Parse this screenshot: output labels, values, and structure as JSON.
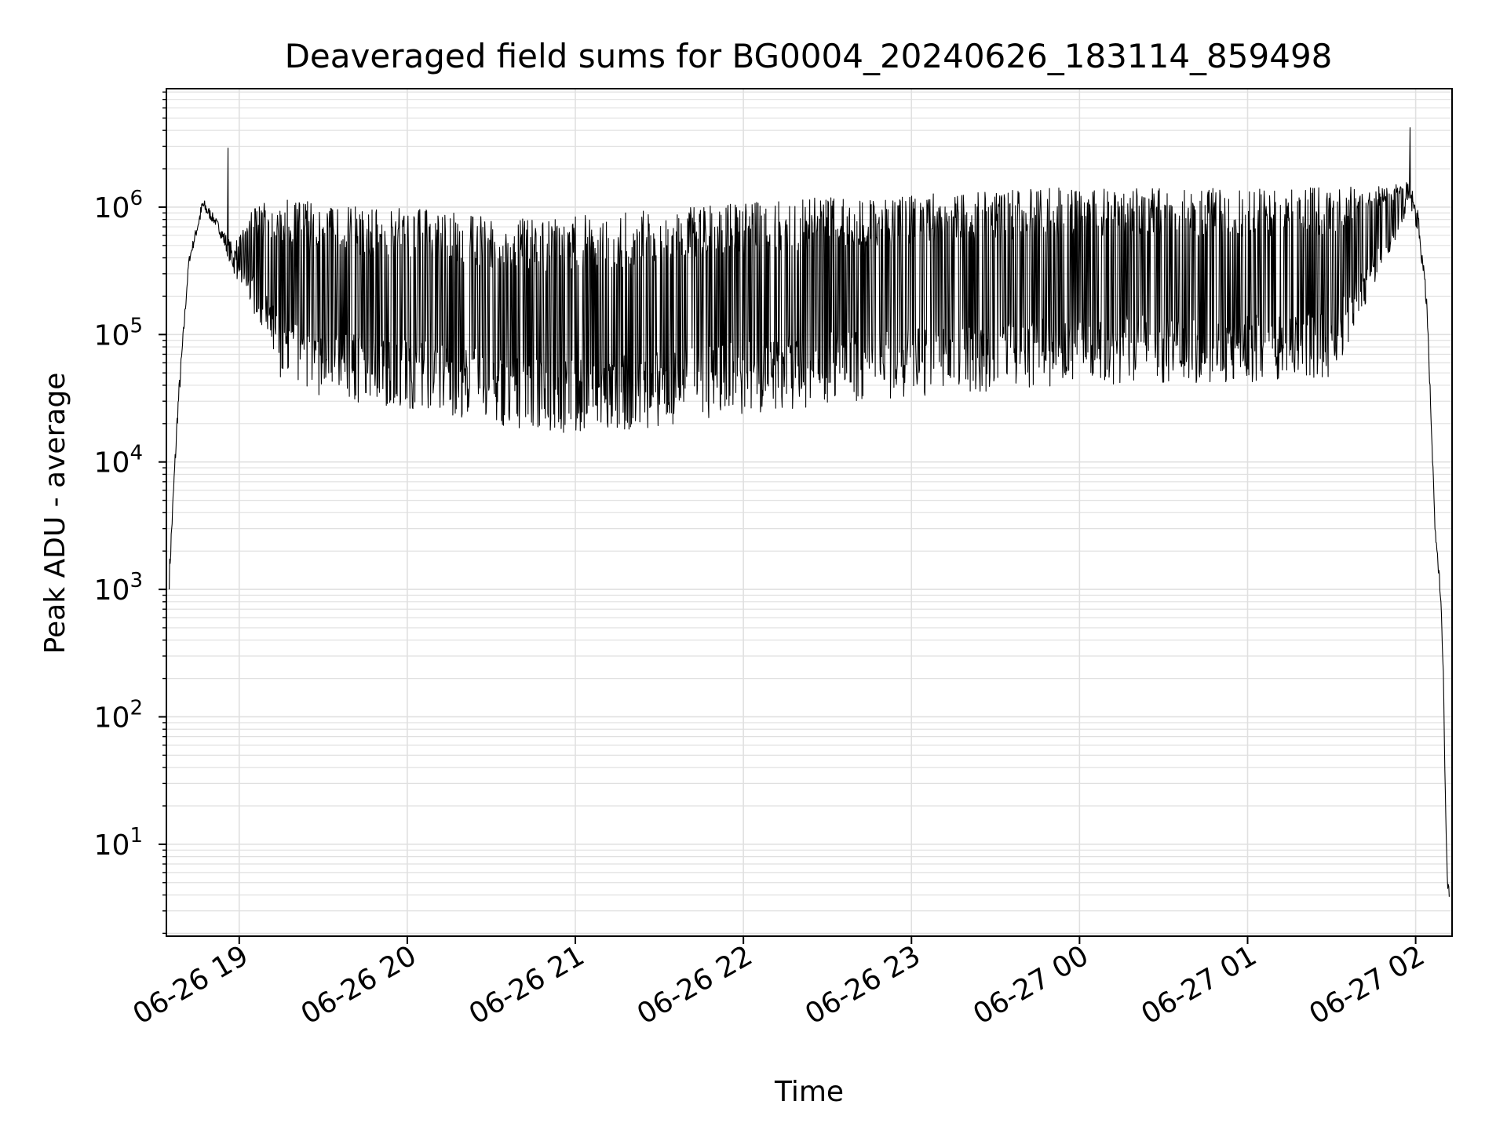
{
  "chart_data": {
    "type": "line",
    "title": "Deaveraged field sums for BG0004_20240626_183114_859498",
    "xlabel": "Time",
    "ylabel": "Peak ADU - average",
    "yscale": "log",
    "grid": true,
    "colors": {
      "line": "#000000",
      "grid": "#e0e0e0",
      "axis": "#000000"
    },
    "xlim": [
      "2024-06-26 18:34",
      "2024-06-27 02:13"
    ],
    "ylim": [
      1.9,
      8500000.0
    ],
    "x_ticks": [
      {
        "value": "2024-06-26 19:00",
        "label": "06-26 19"
      },
      {
        "value": "2024-06-26 20:00",
        "label": "06-26 20"
      },
      {
        "value": "2024-06-26 21:00",
        "label": "06-26 21"
      },
      {
        "value": "2024-06-26 22:00",
        "label": "06-26 22"
      },
      {
        "value": "2024-06-26 23:00",
        "label": "06-26 23"
      },
      {
        "value": "2024-06-27 00:00",
        "label": "06-27 00"
      },
      {
        "value": "2024-06-27 01:00",
        "label": "06-27 01"
      },
      {
        "value": "2024-06-27 02:00",
        "label": "06-27 02"
      }
    ],
    "y_ticks": [
      {
        "value": 10,
        "base": "10",
        "exp": "1"
      },
      {
        "value": 100,
        "base": "10",
        "exp": "2"
      },
      {
        "value": 1000,
        "base": "10",
        "exp": "3"
      },
      {
        "value": 10000,
        "base": "10",
        "exp": "4"
      },
      {
        "value": 100000,
        "base": "10",
        "exp": "5"
      },
      {
        "value": 1000000,
        "base": "10",
        "exp": "6"
      }
    ],
    "envelope": {
      "x": [
        "2024-06-26 18:35",
        "2024-06-26 18:38",
        "2024-06-26 18:42",
        "2024-06-26 18:47",
        "2024-06-26 18:52",
        "2024-06-26 18:58",
        "2024-06-26 19:05",
        "2024-06-26 19:15",
        "2024-06-26 19:25",
        "2024-06-26 19:35",
        "2024-06-26 19:50",
        "2024-06-26 20:10",
        "2024-06-26 20:30",
        "2024-06-26 20:45",
        "2024-06-26 21:00",
        "2024-06-26 21:15",
        "2024-06-26 21:30",
        "2024-06-26 21:50",
        "2024-06-26 22:10",
        "2024-06-26 22:30",
        "2024-06-26 23:00",
        "2024-06-26 23:30",
        "2024-06-27 00:00",
        "2024-06-27 00:30",
        "2024-06-27 01:00",
        "2024-06-27 01:30",
        "2024-06-27 01:50",
        "2024-06-27 01:58",
        "2024-06-27 02:01",
        "2024-06-27 02:04",
        "2024-06-27 02:07",
        "2024-06-27 02:09",
        "2024-06-27 02:10",
        "2024-06-27 02:11",
        "2024-06-27 02:12"
      ],
      "upper": [
        1500,
        30000,
        400000,
        1200000,
        800000,
        500000,
        1000000,
        1200000,
        1100000,
        1050000,
        1000000,
        950000,
        850000,
        800000,
        850000,
        900000,
        950000,
        1050000,
        1150000,
        1200000,
        1250000,
        1350000,
        1450000,
        1400000,
        1400000,
        1450000,
        1450000,
        1600000,
        900000,
        200000,
        3000,
        1000,
        200,
        10,
        4
      ],
      "lower": [
        1000,
        20000,
        350000,
        900000,
        700000,
        300000,
        150000,
        45000,
        33000,
        30000,
        28000,
        25000,
        20000,
        17000,
        16000,
        17000,
        19000,
        22000,
        25000,
        28000,
        32000,
        36000,
        40000,
        42000,
        42000,
        45000,
        400000,
        1000000,
        600000,
        150000,
        2500,
        800,
        150,
        5,
        3.8
      ]
    },
    "spikes": [
      {
        "x": "2024-06-26 18:56",
        "y": 2900000
      },
      {
        "x": "2024-06-27 01:58",
        "y": 4200000
      }
    ]
  }
}
